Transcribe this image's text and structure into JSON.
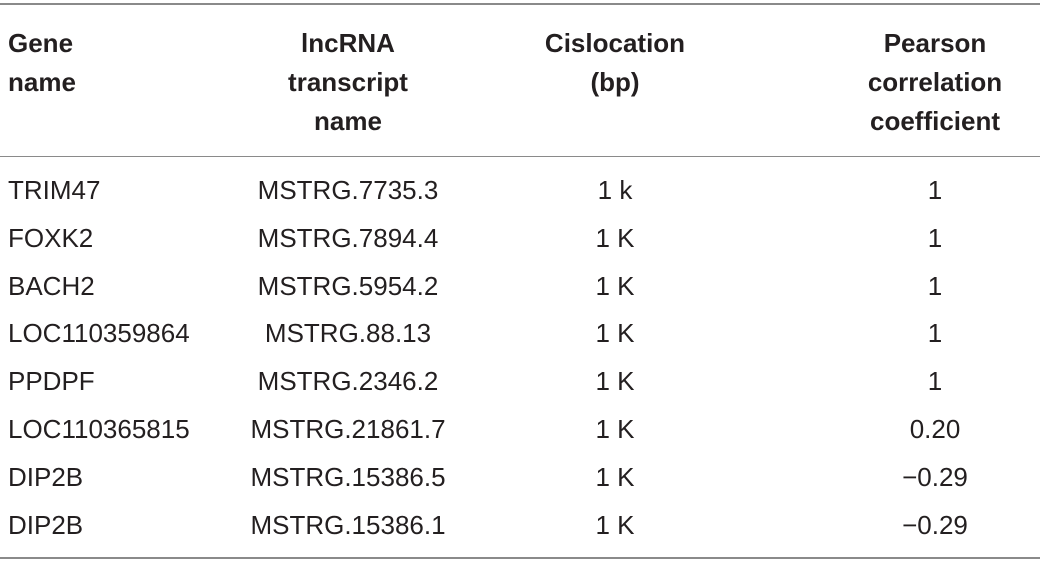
{
  "table": {
    "header": [
      [
        "Gene",
        "name"
      ],
      [
        "lncRNA",
        "transcript",
        "name"
      ],
      [
        "Cislocation",
        "(bp)"
      ],
      [
        "Pearson",
        "correlation",
        "coefficient"
      ]
    ],
    "rows": [
      [
        "TRIM47",
        "MSTRG.7735.3",
        "1 k",
        "1"
      ],
      [
        "FOXK2",
        "MSTRG.7894.4",
        "1 K",
        "1"
      ],
      [
        "BACH2",
        "MSTRG.5954.2",
        "1 K",
        "1"
      ],
      [
        "LOC110359864",
        "MSTRG.88.13",
        "1 K",
        "1"
      ],
      [
        "PPDPF",
        "MSTRG.2346.2",
        "1 K",
        "1"
      ],
      [
        "LOC110365815",
        "MSTRG.21861.7",
        "1 K",
        "0.20"
      ],
      [
        "DIP2B",
        "MSTRG.15386.5",
        "1 K",
        "−0.29"
      ],
      [
        "DIP2B",
        "MSTRG.15386.1",
        "1 K",
        "−0.29"
      ]
    ]
  }
}
